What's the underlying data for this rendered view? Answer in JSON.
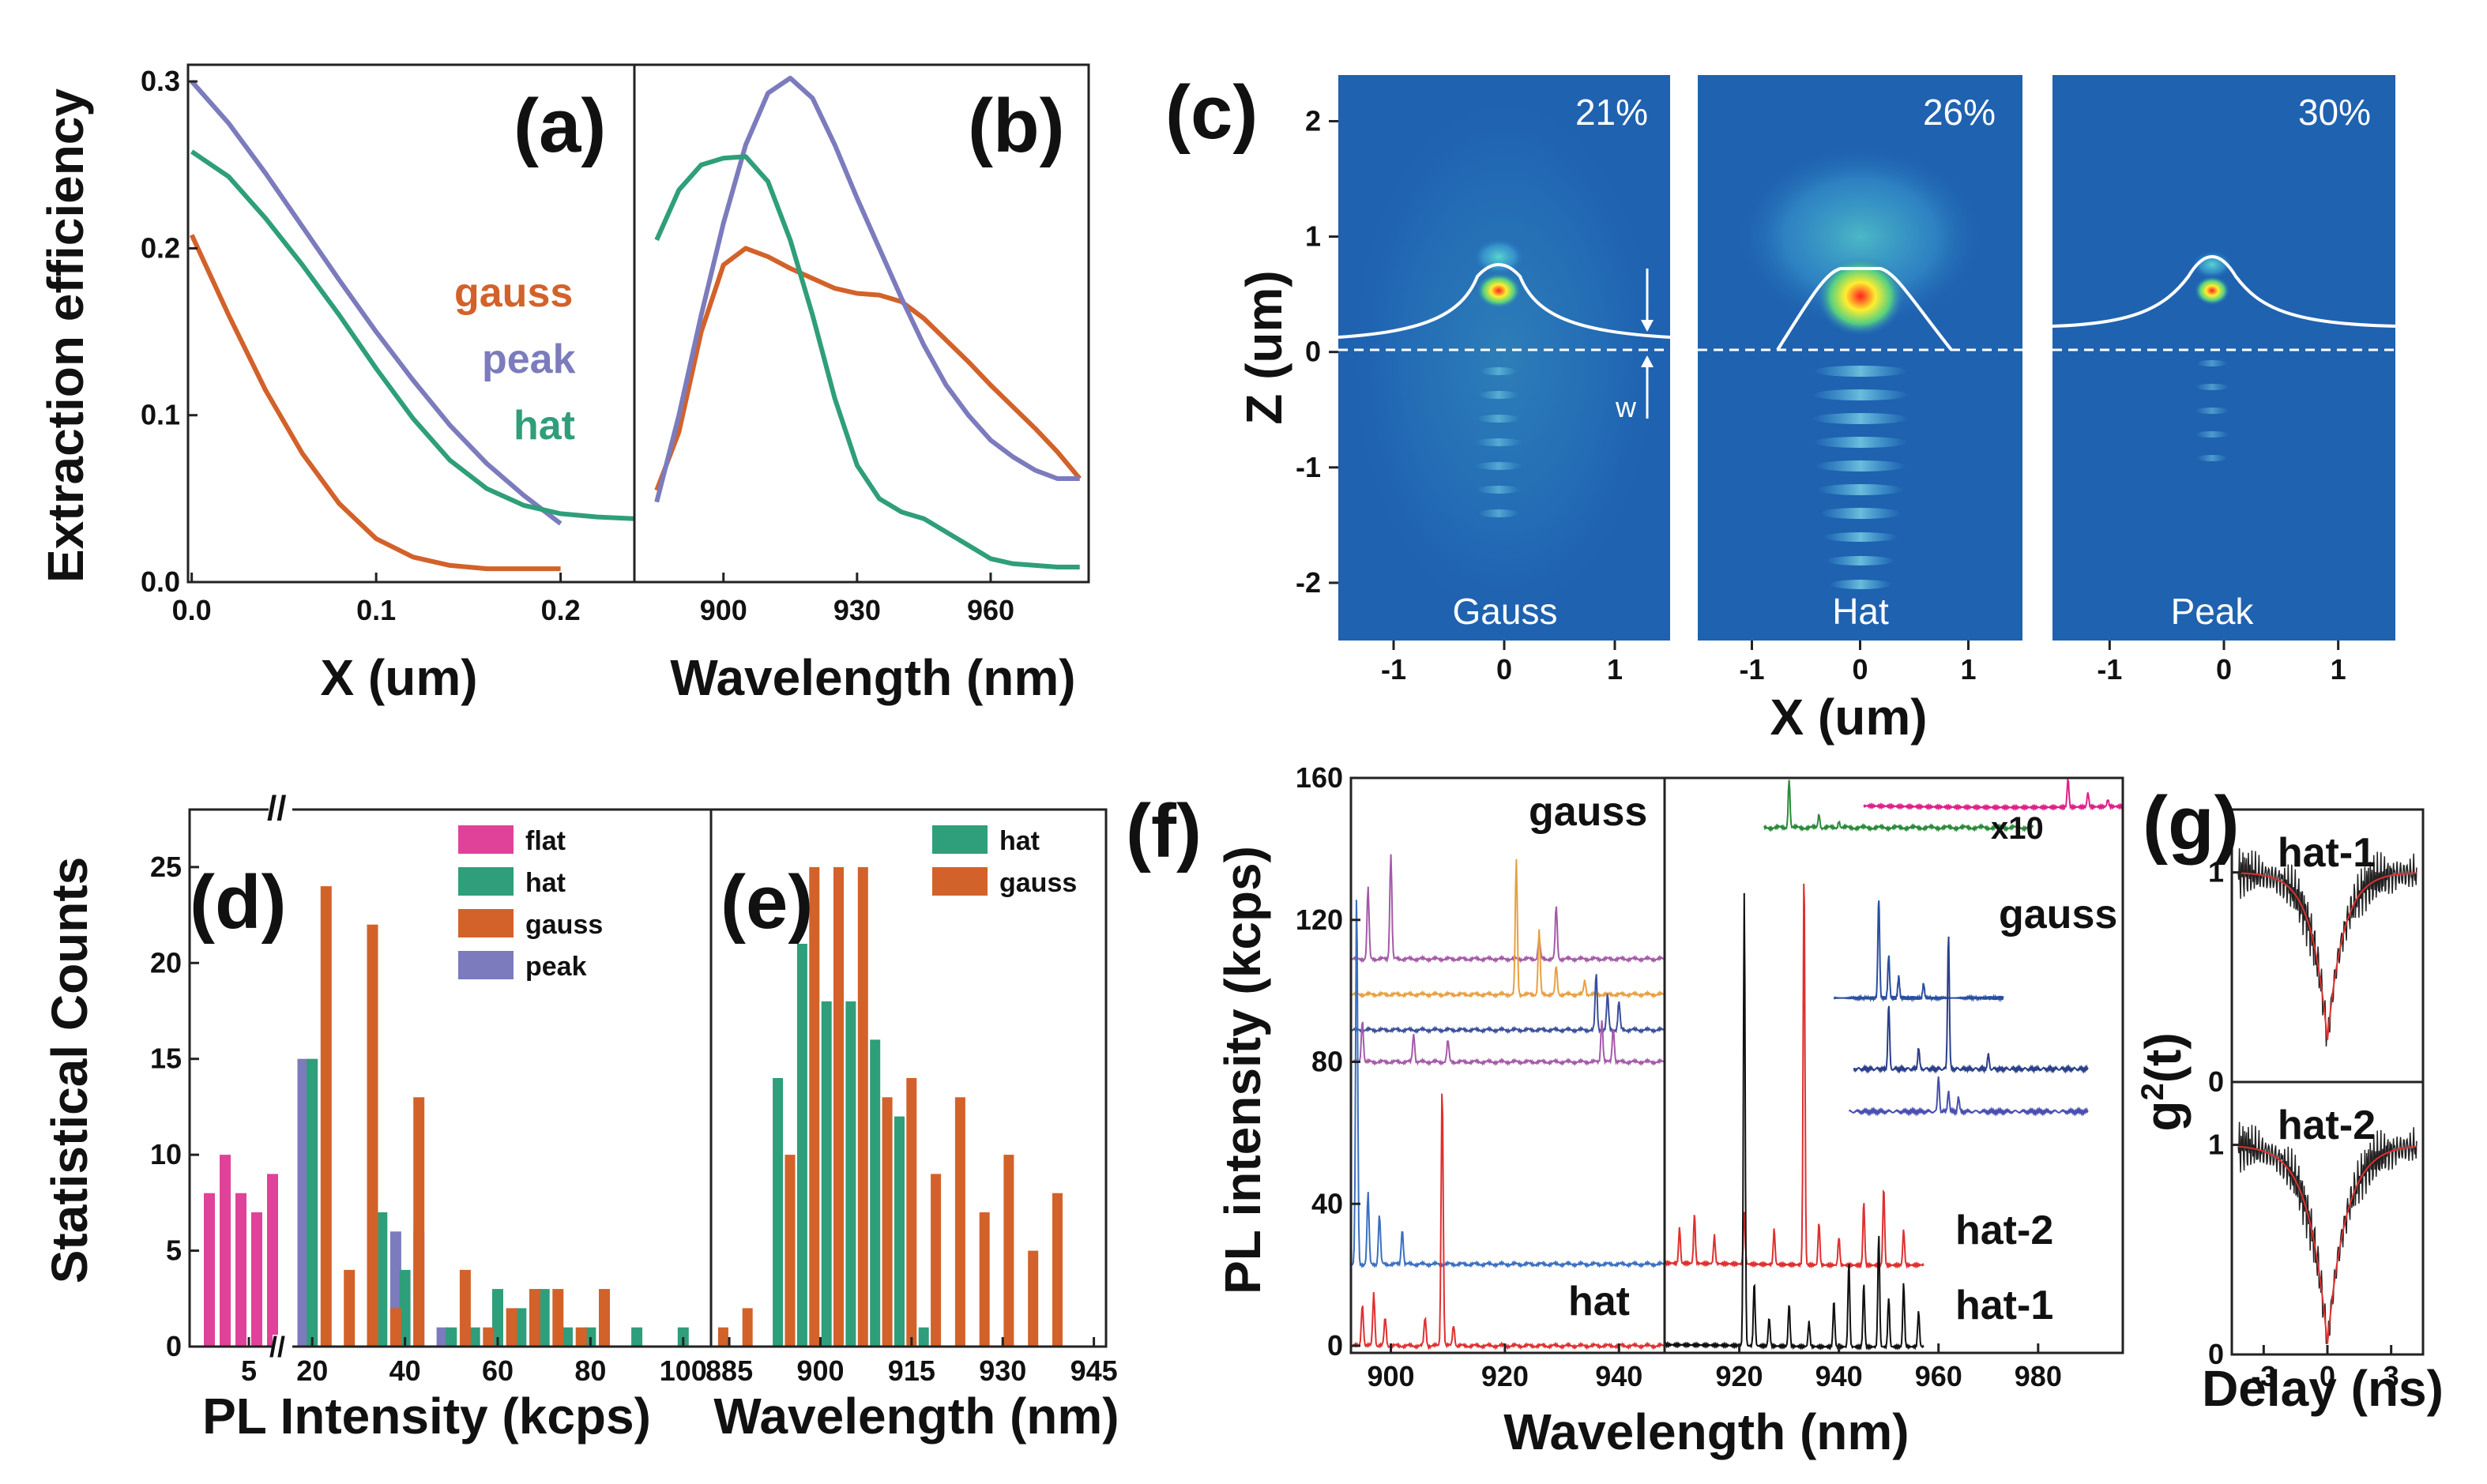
{
  "colors": {
    "gauss": "#d2622a",
    "peak": "#7b7bbd",
    "hat": "#2f9e7a",
    "flat": "#e0429a",
    "map_bg": "#1f62b0",
    "map_edge": "#2a78c4"
  },
  "chart_data": [
    {
      "id": "a",
      "type": "line",
      "panel_label": "(a)",
      "xlabel": "X (um)",
      "ylabel": "Extraction efficiency",
      "xlim": [
        -0.002,
        0.24
      ],
      "ylim": [
        0,
        0.31
      ],
      "xticks": [
        0.0,
        0.1,
        0.2
      ],
      "xtick_labels": [
        "0.0",
        "0.1",
        "0.2"
      ],
      "yticks": [
        0.0,
        0.1,
        0.2,
        0.3
      ],
      "ytick_labels": [
        "0.0",
        "0.1",
        "0.2",
        "0.3"
      ],
      "legend": [
        "gauss",
        "peak",
        "hat"
      ],
      "series": [
        {
          "name": "gauss",
          "x": [
            0,
            0.02,
            0.04,
            0.06,
            0.08,
            0.1,
            0.12,
            0.14,
            0.16,
            0.18,
            0.2
          ],
          "y": [
            0.208,
            0.16,
            0.115,
            0.077,
            0.047,
            0.026,
            0.015,
            0.01,
            0.008,
            0.008,
            0.008
          ]
        },
        {
          "name": "peak",
          "x": [
            0,
            0.02,
            0.04,
            0.06,
            0.08,
            0.1,
            0.12,
            0.14,
            0.16,
            0.18,
            0.2
          ],
          "y": [
            0.3,
            0.275,
            0.245,
            0.213,
            0.181,
            0.15,
            0.121,
            0.094,
            0.071,
            0.052,
            0.035
          ]
        },
        {
          "name": "hat",
          "x": [
            0,
            0.02,
            0.04,
            0.06,
            0.08,
            0.1,
            0.12,
            0.14,
            0.16,
            0.18,
            0.2,
            0.22,
            0.24
          ],
          "y": [
            0.258,
            0.243,
            0.218,
            0.19,
            0.16,
            0.128,
            0.098,
            0.073,
            0.056,
            0.046,
            0.041,
            0.039,
            0.038
          ]
        }
      ]
    },
    {
      "id": "b",
      "type": "line",
      "panel_label": "(b)",
      "xlabel": "Wavelength (nm)",
      "ylabel": "",
      "xlim": [
        880,
        982
      ],
      "ylim": [
        0,
        0.31
      ],
      "xticks": [
        900,
        930,
        960
      ],
      "xtick_labels": [
        "900",
        "930",
        "960"
      ],
      "series": [
        {
          "name": "gauss",
          "x": [
            885,
            890,
            895,
            900,
            905,
            910,
            915,
            920,
            925,
            930,
            935,
            940,
            945,
            950,
            955,
            960,
            965,
            970,
            975,
            980
          ],
          "y": [
            0.055,
            0.09,
            0.15,
            0.19,
            0.2,
            0.195,
            0.188,
            0.182,
            0.176,
            0.173,
            0.172,
            0.168,
            0.158,
            0.145,
            0.132,
            0.118,
            0.105,
            0.092,
            0.078,
            0.062
          ]
        },
        {
          "name": "peak",
          "x": [
            885,
            890,
            895,
            900,
            905,
            910,
            915,
            920,
            925,
            930,
            935,
            940,
            945,
            950,
            955,
            960,
            965,
            970,
            975,
            980
          ],
          "y": [
            0.048,
            0.1,
            0.16,
            0.215,
            0.262,
            0.293,
            0.302,
            0.29,
            0.262,
            0.23,
            0.2,
            0.17,
            0.142,
            0.118,
            0.1,
            0.085,
            0.075,
            0.067,
            0.062,
            0.062
          ]
        },
        {
          "name": "hat",
          "x": [
            885,
            890,
            895,
            900,
            905,
            910,
            915,
            920,
            925,
            930,
            935,
            940,
            945,
            950,
            955,
            960,
            965,
            970,
            975,
            980
          ],
          "y": [
            0.205,
            0.235,
            0.25,
            0.254,
            0.255,
            0.24,
            0.205,
            0.16,
            0.11,
            0.07,
            0.05,
            0.042,
            0.038,
            0.03,
            0.022,
            0.014,
            0.011,
            0.01,
            0.009,
            0.009
          ]
        }
      ]
    },
    {
      "id": "c",
      "type": "heatmap",
      "panel_label": "(c)",
      "xlabel": "X (um)",
      "ylabel": "Z (um)",
      "xlim": [
        -1.5,
        1.5
      ],
      "ylim": [
        -2.5,
        2.4
      ],
      "xticks": [
        -1,
        0,
        1
      ],
      "xtick_labels": [
        "-1",
        "0",
        "1"
      ],
      "yticks": [
        2,
        1,
        0,
        -1,
        -2
      ],
      "ytick_labels": [
        "2",
        "1",
        "0",
        "-1",
        "-2"
      ],
      "w_label": "w",
      "maps": [
        {
          "name": "Gauss",
          "efficiency": "21%"
        },
        {
          "name": "Hat",
          "efficiency": "26%"
        },
        {
          "name": "Peak",
          "efficiency": "30%"
        }
      ]
    },
    {
      "id": "d",
      "type": "bar",
      "panel_label": "(d)",
      "xlabel": "PL Intensity (kcps)",
      "ylabel": "Statistical Counts",
      "ylim": [
        0,
        28
      ],
      "yticks": [
        0,
        5,
        10,
        15,
        20,
        25
      ],
      "ytick_labels": [
        "0",
        "5",
        "10",
        "15",
        "20",
        "25"
      ],
      "xtick_labels": [
        "5",
        "20",
        "40",
        "60",
        "80",
        "100"
      ],
      "legend": [
        "flat",
        "hat",
        "gauss",
        "peak"
      ],
      "series": [
        {
          "name": "flat",
          "x": [
            2.5,
            3.5,
            4.5,
            5.5,
            6.5
          ],
          "values": [
            8,
            10,
            8,
            7,
            9
          ]
        },
        {
          "name": "peak",
          "x": [
            18,
            33,
            38,
            43,
            48
          ],
          "values": [
            15,
            9,
            6,
            6,
            1
          ]
        },
        {
          "name": "hat",
          "x": [
            20,
            35,
            40,
            50,
            55,
            60,
            65,
            70,
            75,
            80,
            90,
            100
          ],
          "values": [
            15,
            7,
            4,
            1,
            1,
            3,
            2,
            3,
            1,
            1,
            1,
            1
          ]
        },
        {
          "name": "gauss",
          "x": [
            23,
            28,
            33,
            38,
            43,
            53,
            58,
            63,
            68,
            73,
            78,
            83
          ],
          "values": [
            24,
            4,
            22,
            2,
            13,
            4,
            1,
            2,
            3,
            3,
            1,
            3
          ]
        }
      ]
    },
    {
      "id": "e",
      "type": "bar",
      "panel_label": "(e)",
      "xlabel": "Wavelength (nm)",
      "ylabel": "",
      "xlim": [
        882,
        947
      ],
      "ylim": [
        0,
        28
      ],
      "xticks": [
        885,
        900,
        915,
        930,
        945
      ],
      "xtick_labels": [
        "885",
        "900",
        "915",
        "930",
        "945"
      ],
      "legend": [
        "hat",
        "gauss"
      ],
      "series": [
        {
          "name": "hat",
          "x": [
            893,
            897,
            901,
            905,
            909,
            913,
            917
          ],
          "values": [
            14,
            21,
            18,
            18,
            16,
            12,
            1
          ]
        },
        {
          "name": "gauss",
          "x": [
            884,
            888,
            895,
            899,
            903,
            907,
            911,
            915,
            919,
            923,
            927,
            931,
            935,
            939
          ],
          "values": [
            1,
            2,
            10,
            25,
            25,
            25,
            13,
            14,
            9,
            13,
            7,
            10,
            5,
            8
          ]
        }
      ]
    },
    {
      "id": "f",
      "type": "line",
      "panel_label": "(f)",
      "xlabel": "Wavelength (nm)",
      "ylabel": "PL intensity (kcps)",
      "ylim": [
        -2,
        160
      ],
      "yticks": [
        0,
        40,
        80,
        120,
        160
      ],
      "ytick_labels": [
        "0",
        "40",
        "80",
        "120",
        "160"
      ],
      "left_xlim": [
        893,
        948
      ],
      "left_xticks": [
        900,
        920,
        940
      ],
      "left_xtick_labels": [
        "900",
        "920",
        "940"
      ],
      "right_xlim": [
        905,
        997
      ],
      "right_xticks": [
        920,
        940,
        960,
        980
      ],
      "right_xtick_labels": [
        "920",
        "940",
        "960",
        "980"
      ],
      "labels": {
        "gauss_left": "gauss",
        "hat_left": "hat",
        "gauss_right": "gauss",
        "x10": "x10",
        "hat2": "hat-2",
        "hat1": "hat-1"
      },
      "left_traces": [
        {
          "name": "gauss-1",
          "color": "#a45aa8",
          "baseline": 109,
          "peaks": [
            [
              896,
              20
            ],
            [
              900,
              30
            ],
            [
              929,
              15
            ],
            [
              926,
              6
            ]
          ]
        },
        {
          "name": "gauss-2",
          "color": "#e8a040",
          "baseline": 99,
          "peaks": [
            [
              922,
              38
            ],
            [
              926,
              18
            ],
            [
              929,
              8
            ],
            [
              934,
              4
            ]
          ]
        },
        {
          "name": "gauss-3",
          "color": "#3a4f9a",
          "baseline": 89,
          "peaks": [
            [
              936,
              16
            ],
            [
              938,
              10
            ],
            [
              940,
              8
            ]
          ]
        },
        {
          "name": "gauss-4",
          "color": "#a45aa8",
          "baseline": 80,
          "peaks": [
            [
              895,
              12
            ],
            [
              904,
              8
            ],
            [
              910,
              6
            ],
            [
              937,
              12
            ],
            [
              939,
              10
            ]
          ]
        },
        {
          "name": "hat-blue",
          "color": "#3a6fc0",
          "baseline": 23,
          "peaks": [
            [
              894,
              105
            ],
            [
              896,
              20
            ],
            [
              898,
              14
            ],
            [
              902,
              10
            ]
          ]
        },
        {
          "name": "hat-red",
          "color": "#e03030",
          "baseline": 0,
          "peaks": [
            [
              895,
              12
            ],
            [
              897,
              15
            ],
            [
              899,
              8
            ],
            [
              906,
              8
            ],
            [
              909,
              74
            ],
            [
              911,
              6
            ]
          ]
        }
      ],
      "right_traces": [
        {
          "name": "x10-green",
          "color": "#2a8a3a",
          "baseline": 146,
          "x0": 925,
          "x1": 979,
          "peaks": [
            [
              930,
              14
            ],
            [
              936,
              4
            ],
            [
              940,
              2
            ]
          ]
        },
        {
          "name": "x10-pink",
          "color": "#e0208a",
          "baseline": 152,
          "x0": 945,
          "x1": 997,
          "peaks": [
            [
              986,
              8
            ],
            [
              990,
              4
            ],
            [
              994,
              2
            ]
          ]
        },
        {
          "name": "gauss-r1",
          "color": "#2a4fa0",
          "baseline": 98,
          "x0": 939,
          "x1": 973,
          "peaks": [
            [
              948,
              28
            ],
            [
              950,
              12
            ],
            [
              952,
              6
            ],
            [
              957,
              4
            ]
          ]
        },
        {
          "name": "gauss-r2",
          "color": "#2a3f8a",
          "baseline": 78,
          "x0": 943,
          "x1": 990,
          "peaks": [
            [
              950,
              18
            ],
            [
              956,
              6
            ],
            [
              962,
              38
            ],
            [
              970,
              4
            ]
          ]
        },
        {
          "name": "gauss-r3",
          "color": "#4a4fb0",
          "baseline": 66,
          "x0": 942,
          "x1": 990,
          "peaks": [
            [
              960,
              10
            ],
            [
              962,
              6
            ],
            [
              964,
              4
            ]
          ]
        },
        {
          "name": "hat-2",
          "color": "#e03030",
          "baseline": 23,
          "x0": 905,
          "x1": 957,
          "peaks": [
            [
              908,
              10
            ],
            [
              911,
              14
            ],
            [
              915,
              8
            ],
            [
              921,
              15
            ],
            [
              927,
              10
            ],
            [
              933,
              112
            ],
            [
              936,
              12
            ],
            [
              940,
              8
            ],
            [
              945,
              18
            ],
            [
              949,
              22
            ],
            [
              953,
              10
            ]
          ]
        },
        {
          "name": "hat-1",
          "color": "#111111",
          "baseline": 0,
          "x0": 905,
          "x1": 957,
          "peaks": [
            [
              921,
              128
            ],
            [
              923,
              18
            ],
            [
              926,
              8
            ],
            [
              930,
              12
            ],
            [
              934,
              7
            ],
            [
              939,
              13
            ],
            [
              942,
              24
            ],
            [
              945,
              18
            ],
            [
              948,
              32
            ],
            [
              950,
              14
            ],
            [
              953,
              18
            ],
            [
              956,
              10
            ]
          ]
        }
      ]
    },
    {
      "id": "g",
      "type": "line",
      "panel_label": "(g)",
      "xlabel": "Delay (ns)",
      "ylabel": "g2(t)",
      "xlim": [
        -4.5,
        4.5
      ],
      "ylim": [
        0,
        1.3
      ],
      "xticks": [
        -3,
        0,
        3
      ],
      "xtick_labels": [
        "-3",
        "0",
        "3"
      ],
      "yticks": [
        0,
        1
      ],
      "ytick_labels": [
        "0",
        "1"
      ],
      "subplots": [
        {
          "name": "hat-1",
          "dip_depth": 0.8,
          "width": 1.2
        },
        {
          "name": "hat-2",
          "dip_depth": 0.95,
          "width": 1.4
        }
      ]
    }
  ]
}
